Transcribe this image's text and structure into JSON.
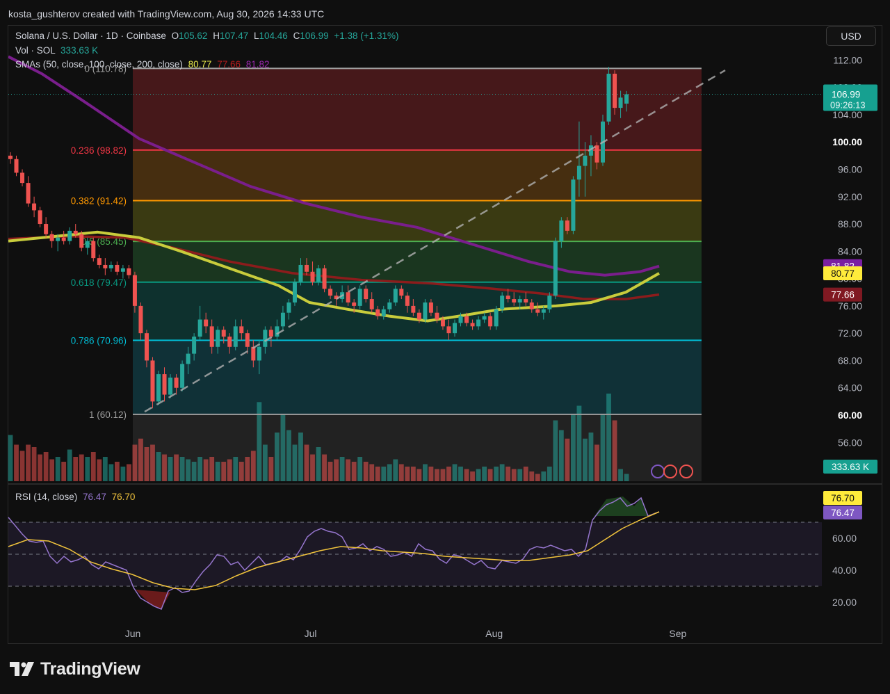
{
  "header": {
    "credit": "kosta_gushterov created with TradingView.com, Aug 30, 2026 14:33 UTC"
  },
  "currency_button": "USD",
  "legend": {
    "symbol": "Solana / U.S. Dollar · 1D · Coinbase",
    "open_label": "O",
    "open": "105.62",
    "high_label": "H",
    "high": "107.47",
    "low_label": "L",
    "low": "104.46",
    "close_label": "C",
    "close": "106.99",
    "change": "+1.38 (+1.31%)",
    "vol_label": "Vol · SOL",
    "vol": "333.63 K",
    "sma_label": "SMAs (50, close, 100, close, 200, close)",
    "sma50": "80.77",
    "sma100": "77.66",
    "sma200": "81.82",
    "rsi_label": "RSI (14, close)",
    "rsi": "76.47",
    "rsi_ma": "76.70"
  },
  "brand": {
    "name": "TradingView"
  },
  "colors": {
    "up": "#26a69a",
    "down": "#ef5350",
    "sma50": "#c8cc3c",
    "sma100": "#8c1c1c",
    "sma200": "#7a1e8c",
    "rsi": "#9575cd",
    "rsi_ma": "#f0c33c"
  },
  "chart_data": {
    "type": "candlestick",
    "price_axis": {
      "min": 52,
      "max": 114,
      "ticks": [
        "112.00",
        "108.00",
        "104.00",
        "100.00",
        "96.00",
        "92.00",
        "88.00",
        "84.00",
        "80.00",
        "76.00",
        "72.00",
        "68.00",
        "64.00",
        "60.00",
        "56.00"
      ]
    },
    "x_labels": [
      {
        "label": "Jun",
        "date": "2026-06-01"
      },
      {
        "label": "Jul",
        "date": "2026-07-01"
      },
      {
        "label": "Aug",
        "date": "2026-08-01"
      },
      {
        "label": "Sep",
        "date": "2026-09-01"
      }
    ],
    "fib_levels": [
      {
        "label": "0 (110.78)",
        "price": 110.78,
        "color": "#9e9e9e"
      },
      {
        "label": "0.236 (98.82)",
        "price": 98.82,
        "color": "#f23645"
      },
      {
        "label": "0.382 (91.42)",
        "price": 91.42,
        "color": "#ff9800"
      },
      {
        "label": "0.5 (85.45)",
        "price": 85.45,
        "color": "#4caf50"
      },
      {
        "label": "0.618 (79.47)",
        "price": 79.47,
        "color": "#089981"
      },
      {
        "label": "0.786 (70.96)",
        "price": 70.96,
        "color": "#00bcd4"
      },
      {
        "label": "1 (60.12)",
        "price": 60.12,
        "color": "#9e9e9e"
      }
    ],
    "fib_zones": [
      "#5a1c1f",
      "#5a3a12",
      "#4a4a14",
      "#1f4426",
      "#0f3d3a",
      "#123d45",
      "#2a2a2a",
      "#1b2852"
    ],
    "fib_range": {
      "start": "2026-06-01",
      "end": "2026-09-05"
    },
    "trendline": {
      "start_date": "2026-06-03",
      "start_price": 60.5,
      "end_date": "2026-09-09",
      "end_price": 110.5
    },
    "price_labels": [
      {
        "text": "81.82",
        "price": 81.82,
        "bg": "#7b1fa2",
        "fg": "#ffffff"
      },
      {
        "text": "80.77",
        "price": 80.77,
        "bg": "#ffeb3b",
        "fg": "#111111"
      },
      {
        "text": "77.66",
        "price": 77.66,
        "bg": "#801922",
        "fg": "#ffffff"
      }
    ],
    "current_price": {
      "text": "106.99",
      "countdown": "09:26:13",
      "price": 106.99
    },
    "volume_label": "333.63 K",
    "bold_ticks": [
      "100.00",
      "60.00"
    ],
    "candles": [
      [
        98,
        98.5,
        96.8,
        97.5
      ],
      [
        97.5,
        98,
        95,
        95.5
      ],
      [
        95.5,
        96,
        93.5,
        94
      ],
      [
        94,
        95,
        90.5,
        91
      ],
      [
        91,
        92,
        89,
        90
      ],
      [
        90,
        90.5,
        87.5,
        88
      ],
      [
        88,
        89,
        86,
        86.5
      ],
      [
        86.5,
        87,
        84.5,
        85.5
      ],
      [
        85.5,
        86.5,
        84,
        86
      ],
      [
        86,
        87,
        85,
        85.5
      ],
      [
        85.5,
        87.5,
        85,
        87
      ],
      [
        87,
        88,
        86,
        86.5
      ],
      [
        86.5,
        87,
        84,
        84.5
      ],
      [
        84.5,
        86,
        83.5,
        85.5
      ],
      [
        85.5,
        86,
        82.5,
        83
      ],
      [
        83,
        83.5,
        81.5,
        82
      ],
      [
        82,
        83,
        80.5,
        81.5
      ],
      [
        81.5,
        82.5,
        81,
        82
      ],
      [
        82,
        82.5,
        80.5,
        81
      ],
      [
        81,
        82,
        80,
        81.5
      ],
      [
        81.5,
        82,
        80,
        80.5
      ],
      [
        80.5,
        81,
        75,
        76
      ],
      [
        76,
        76.5,
        71,
        72
      ],
      [
        72,
        72.5,
        67,
        68
      ],
      [
        68,
        68.5,
        61,
        62
      ],
      [
        62,
        66.5,
        61.5,
        66
      ],
      [
        66,
        67,
        62,
        63
      ],
      [
        63,
        66,
        62.5,
        65.5
      ],
      [
        65.5,
        66,
        63,
        64
      ],
      [
        64,
        68,
        63.5,
        67.5
      ],
      [
        67.5,
        70,
        66,
        69
      ],
      [
        69,
        72,
        68,
        71.5
      ],
      [
        71.5,
        76,
        71,
        74
      ],
      [
        74,
        75,
        72,
        73
      ],
      [
        73,
        74,
        69,
        70
      ],
      [
        70,
        73,
        69,
        72.5
      ],
      [
        72.5,
        73,
        70.5,
        71.5
      ],
      [
        71.5,
        72,
        69,
        70
      ],
      [
        70,
        74,
        69.5,
        73
      ],
      [
        73,
        74,
        71,
        72
      ],
      [
        72,
        72.5,
        69,
        70
      ],
      [
        70,
        71,
        67,
        68
      ],
      [
        68,
        71,
        66,
        70
      ],
      [
        70,
        73,
        69,
        72.5
      ],
      [
        72.5,
        73,
        70,
        71.5
      ],
      [
        71.5,
        74,
        71,
        73
      ],
      [
        73,
        76,
        72.5,
        75
      ],
      [
        75,
        77,
        74,
        76.5
      ],
      [
        76.5,
        80,
        76,
        79.5
      ],
      [
        79.5,
        83,
        79,
        82
      ],
      [
        82,
        83,
        80.5,
        81
      ],
      [
        81,
        82.5,
        79,
        79.5
      ],
      [
        79.5,
        82,
        79,
        81.5
      ],
      [
        81.5,
        82,
        78,
        78.5
      ],
      [
        78.5,
        79,
        77,
        77.5
      ],
      [
        77.5,
        78,
        76,
        77
      ],
      [
        77,
        79,
        76.5,
        78
      ],
      [
        78,
        79,
        76,
        76.5
      ],
      [
        76.5,
        77,
        75,
        76
      ],
      [
        76,
        79,
        75.5,
        78.5
      ],
      [
        78.5,
        79,
        76.5,
        77
      ],
      [
        77,
        78,
        75,
        75.5
      ],
      [
        75.5,
        76,
        74,
        74.5
      ],
      [
        74.5,
        76,
        74,
        75.5
      ],
      [
        75.5,
        77,
        75,
        76.5
      ],
      [
        76.5,
        79,
        76,
        78.5
      ],
      [
        78.5,
        79,
        77,
        77.5
      ],
      [
        77.5,
        78,
        75,
        76
      ],
      [
        76,
        77,
        74.5,
        75
      ],
      [
        75,
        75.5,
        73.5,
        74
      ],
      [
        74,
        77,
        73.5,
        76.5
      ],
      [
        76.5,
        77,
        74.5,
        75
      ],
      [
        75,
        76,
        73.5,
        74
      ],
      [
        74,
        74.5,
        72.5,
        73
      ],
      [
        73,
        74,
        71,
        72
      ],
      [
        72,
        74,
        71.5,
        73.5
      ],
      [
        73.5,
        75,
        73,
        74.5
      ],
      [
        74.5,
        75,
        73,
        73.5
      ],
      [
        73.5,
        74,
        72.5,
        73
      ],
      [
        73,
        74.5,
        72.5,
        74
      ],
      [
        74,
        75,
        73.5,
        74.5
      ],
      [
        74.5,
        75,
        72.5,
        73
      ],
      [
        73,
        76,
        72.5,
        75.5
      ],
      [
        75.5,
        78,
        75,
        77.5
      ],
      [
        77.5,
        78.5,
        76.5,
        77
      ],
      [
        77,
        78,
        76,
        76.5
      ],
      [
        76.5,
        77.5,
        75.5,
        77
      ],
      [
        77,
        78,
        76,
        76.5
      ],
      [
        76.5,
        77,
        75,
        75.5
      ],
      [
        75.5,
        76.5,
        74.5,
        75
      ],
      [
        75,
        76,
        74,
        75.5
      ],
      [
        75.5,
        78,
        75,
        77.5
      ],
      [
        77.5,
        86,
        77,
        85.5
      ],
      [
        85.5,
        89,
        84.5,
        88.5
      ],
      [
        88.5,
        89,
        86.5,
        87
      ],
      [
        87,
        95,
        86.5,
        94.5
      ],
      [
        94.5,
        103,
        92,
        96.5
      ],
      [
        96.5,
        100,
        92,
        98
      ],
      [
        98,
        101,
        95,
        99.5
      ],
      [
        99.5,
        100,
        96,
        97
      ],
      [
        97,
        104,
        96.5,
        103
      ],
      [
        103,
        111,
        102.5,
        110
      ],
      [
        110,
        110.5,
        104,
        105
      ],
      [
        105,
        107.5,
        103.5,
        106.5
      ],
      [
        105.62,
        107.47,
        104.46,
        106.99
      ]
    ],
    "volume": [
      {
        "v": 0.38,
        "up": true
      },
      {
        "v": 0.3,
        "up": false
      },
      {
        "v": 0.25,
        "up": false
      },
      {
        "v": 0.3,
        "up": false
      },
      {
        "v": 0.28,
        "up": false
      },
      {
        "v": 0.22,
        "up": false
      },
      {
        "v": 0.24,
        "up": false
      },
      {
        "v": 0.18,
        "up": false
      },
      {
        "v": 0.2,
        "up": true
      },
      {
        "v": 0.16,
        "up": false
      },
      {
        "v": 0.26,
        "up": true
      },
      {
        "v": 0.2,
        "up": false
      },
      {
        "v": 0.22,
        "up": false
      },
      {
        "v": 0.2,
        "up": true
      },
      {
        "v": 0.24,
        "up": false
      },
      {
        "v": 0.18,
        "up": false
      },
      {
        "v": 0.2,
        "up": true
      },
      {
        "v": 0.14,
        "up": true
      },
      {
        "v": 0.16,
        "up": false
      },
      {
        "v": 0.12,
        "up": true
      },
      {
        "v": 0.14,
        "up": false
      },
      {
        "v": 0.3,
        "up": false
      },
      {
        "v": 0.35,
        "up": false
      },
      {
        "v": 0.28,
        "up": false
      },
      {
        "v": 0.3,
        "up": false
      },
      {
        "v": 0.24,
        "up": true
      },
      {
        "v": 0.22,
        "up": false
      },
      {
        "v": 0.2,
        "up": true
      },
      {
        "v": 0.22,
        "up": false
      },
      {
        "v": 0.2,
        "up": true
      },
      {
        "v": 0.18,
        "up": true
      },
      {
        "v": 0.16,
        "up": true
      },
      {
        "v": 0.2,
        "up": true
      },
      {
        "v": 0.18,
        "up": false
      },
      {
        "v": 0.2,
        "up": false
      },
      {
        "v": 0.16,
        "up": true
      },
      {
        "v": 0.16,
        "up": false
      },
      {
        "v": 0.18,
        "up": false
      },
      {
        "v": 0.2,
        "up": true
      },
      {
        "v": 0.16,
        "up": false
      },
      {
        "v": 0.2,
        "up": false
      },
      {
        "v": 0.25,
        "up": false
      },
      {
        "v": 0.65,
        "up": true
      },
      {
        "v": 0.3,
        "up": true
      },
      {
        "v": 0.2,
        "up": false
      },
      {
        "v": 0.4,
        "up": true
      },
      {
        "v": 0.55,
        "up": true
      },
      {
        "v": 0.42,
        "up": true
      },
      {
        "v": 0.3,
        "up": true
      },
      {
        "v": 0.4,
        "up": true
      },
      {
        "v": 0.3,
        "up": false
      },
      {
        "v": 0.22,
        "up": false
      },
      {
        "v": 0.28,
        "up": true
      },
      {
        "v": 0.22,
        "up": false
      },
      {
        "v": 0.16,
        "up": false
      },
      {
        "v": 0.18,
        "up": false
      },
      {
        "v": 0.2,
        "up": true
      },
      {
        "v": 0.18,
        "up": false
      },
      {
        "v": 0.16,
        "up": false
      },
      {
        "v": 0.2,
        "up": true
      },
      {
        "v": 0.16,
        "up": false
      },
      {
        "v": 0.14,
        "up": false
      },
      {
        "v": 0.12,
        "up": false
      },
      {
        "v": 0.12,
        "up": true
      },
      {
        "v": 0.14,
        "up": true
      },
      {
        "v": 0.18,
        "up": true
      },
      {
        "v": 0.14,
        "up": false
      },
      {
        "v": 0.12,
        "up": false
      },
      {
        "v": 0.12,
        "up": false
      },
      {
        "v": 0.1,
        "up": false
      },
      {
        "v": 0.14,
        "up": true
      },
      {
        "v": 0.12,
        "up": false
      },
      {
        "v": 0.1,
        "up": false
      },
      {
        "v": 0.1,
        "up": false
      },
      {
        "v": 0.12,
        "up": false
      },
      {
        "v": 0.14,
        "up": true
      },
      {
        "v": 0.12,
        "up": true
      },
      {
        "v": 0.1,
        "up": false
      },
      {
        "v": 0.08,
        "up": false
      },
      {
        "v": 0.1,
        "up": true
      },
      {
        "v": 0.12,
        "up": true
      },
      {
        "v": 0.1,
        "up": false
      },
      {
        "v": 0.12,
        "up": true
      },
      {
        "v": 0.14,
        "up": true
      },
      {
        "v": 0.12,
        "up": false
      },
      {
        "v": 0.1,
        "up": false
      },
      {
        "v": 0.1,
        "up": true
      },
      {
        "v": 0.12,
        "up": false
      },
      {
        "v": 0.08,
        "up": false
      },
      {
        "v": 0.06,
        "up": false
      },
      {
        "v": 0.08,
        "up": true
      },
      {
        "v": 0.12,
        "up": true
      },
      {
        "v": 0.5,
        "up": true
      },
      {
        "v": 0.42,
        "up": true
      },
      {
        "v": 0.35,
        "up": false
      },
      {
        "v": 0.55,
        "up": true
      },
      {
        "v": 0.62,
        "up": true
      },
      {
        "v": 0.35,
        "up": true
      },
      {
        "v": 0.4,
        "up": true
      },
      {
        "v": 0.3,
        "up": false
      },
      {
        "v": 0.55,
        "up": true
      },
      {
        "v": 0.72,
        "up": true
      },
      {
        "v": 0.5,
        "up": false
      },
      {
        "v": 0.1,
        "up": true
      },
      {
        "v": 0.06,
        "up": true
      }
    ],
    "rsi_axis": {
      "min": 10,
      "max": 90,
      "ticks": [
        "60.00",
        "40.00",
        "20.00"
      ],
      "bands": [
        70,
        50,
        30
      ]
    },
    "rsi_labels": [
      {
        "text": "76.70",
        "value": 76.7,
        "bg": "#ffeb3b",
        "fg": "#111111"
      },
      {
        "text": "76.47",
        "value": 76.47,
        "bg": "#7e57c2",
        "fg": "#ffffff"
      }
    ]
  }
}
